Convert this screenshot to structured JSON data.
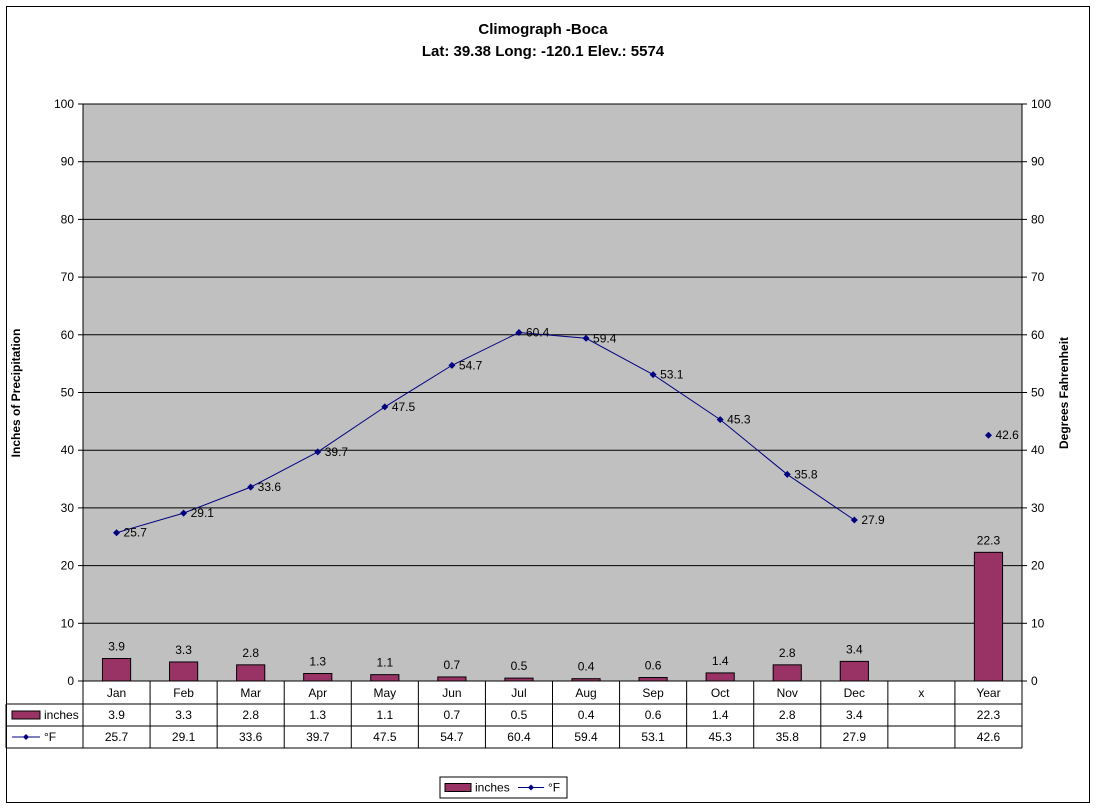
{
  "chart_data": {
    "type": "bar",
    "title": "Climograph -Boca",
    "subtitle": "Lat: 39.38 Long: -120.1 Elev.: 5574",
    "ylabel": "Inches of Precipitation",
    "y2label": "Degrees Fahrenheit",
    "ylim": [
      0,
      100
    ],
    "y2lim": [
      0,
      100
    ],
    "yticks": [
      0,
      10,
      20,
      30,
      40,
      50,
      60,
      70,
      80,
      90,
      100
    ],
    "grid": true,
    "plot_background": "#C0C0C0",
    "categories": [
      "Jan",
      "Feb",
      "Mar",
      "Apr",
      "May",
      "Jun",
      "Jul",
      "Aug",
      "Sep",
      "Oct",
      "Nov",
      "Dec",
      "x",
      "Year"
    ],
    "series": [
      {
        "name": "inches",
        "type": "bar",
        "color": "#993366",
        "values": [
          3.9,
          3.3,
          2.8,
          1.3,
          1.1,
          0.7,
          0.5,
          0.4,
          0.6,
          1.4,
          2.8,
          3.4,
          null,
          22.3
        ],
        "table_values": [
          "3.9",
          "3.3",
          "2.8",
          "1.3",
          "1.1",
          "0.7",
          "0.5",
          "0.4",
          "0.6",
          "1.4",
          "2.8",
          "3.4",
          "",
          "22.3"
        ]
      },
      {
        "name": "°F",
        "type": "line",
        "color": "#000080",
        "values": [
          25.7,
          29.1,
          33.6,
          39.7,
          47.5,
          54.7,
          60.4,
          59.4,
          53.1,
          45.3,
          35.8,
          27.9,
          null,
          42.6
        ],
        "table_values": [
          "25.7",
          "29.1",
          "33.6",
          "39.7",
          "47.5",
          "54.7",
          "60.4",
          "59.4",
          "53.1",
          "45.3",
          "35.8",
          "27.9",
          "",
          "42.6"
        ]
      }
    ],
    "legend": {
      "position": "bottom",
      "items": [
        "inches",
        "°F"
      ]
    },
    "data_table": true
  }
}
